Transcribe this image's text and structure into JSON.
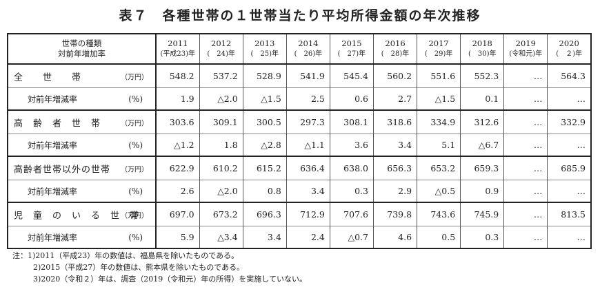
{
  "title": "表７　各種世帯の１世帯当たり平均所得金額の年次推移",
  "header": {
    "label_line1": "世帯の種類",
    "label_line2": "対前年増加率",
    "years": [
      {
        "year": "2011",
        "era": "(平成23)年"
      },
      {
        "year": "2012",
        "era": "(　24)年"
      },
      {
        "year": "2013",
        "era": "(　25)年"
      },
      {
        "year": "2014",
        "era": "(　26)年"
      },
      {
        "year": "2015",
        "era": "(　27)年"
      },
      {
        "year": "2016",
        "era": "(　28)年"
      },
      {
        "year": "2017",
        "era": "(　29)年"
      },
      {
        "year": "2018",
        "era": "(　30)年"
      },
      {
        "year": "2019",
        "era": "(令和元)年"
      },
      {
        "year": "2020",
        "era": "(　２)年"
      }
    ]
  },
  "rows": [
    {
      "label": "全　　世　　帯",
      "unit": "（万円）",
      "values": [
        "548.2",
        "537.2",
        "528.9",
        "541.9",
        "545.4",
        "560.2",
        "551.6",
        "552.3",
        "…",
        "564.3"
      ]
    },
    {
      "label": "対前年増減率",
      "unit": "(%)",
      "values": [
        "1.9",
        "△2.0",
        "△1.5",
        "2.5",
        "0.6",
        "2.7",
        "△1.5",
        "0.1",
        "…",
        "…"
      ]
    },
    {
      "label": "高　齢　者　世　帯",
      "unit": "（万円）",
      "values": [
        "303.6",
        "309.1",
        "300.5",
        "297.3",
        "308.1",
        "318.6",
        "334.9",
        "312.6",
        "…",
        "332.9"
      ]
    },
    {
      "label": "対前年増減率",
      "unit": "(%)",
      "values": [
        "△1.2",
        "1.8",
        "△2.8",
        "△1.1",
        "3.6",
        "3.4",
        "5.1",
        "△6.7",
        "…",
        "…"
      ]
    },
    {
      "label": "高齢者世帯以外の世帯",
      "unit": "（万円）",
      "values": [
        "622.9",
        "610.2",
        "615.2",
        "636.4",
        "638.0",
        "656.3",
        "653.2",
        "659.3",
        "…",
        "685.9"
      ]
    },
    {
      "label": "対前年増減率",
      "unit": "(%)",
      "values": [
        "2.6",
        "△2.0",
        "0.8",
        "3.4",
        "0.3",
        "2.9",
        "△0.5",
        "0.9",
        "…",
        "…"
      ]
    },
    {
      "label": "児　童　の　い　る　世　帯",
      "unit": "（万円）",
      "values": [
        "697.0",
        "673.2",
        "696.3",
        "712.9",
        "707.6",
        "739.8",
        "743.6",
        "745.9",
        "…",
        "813.5"
      ]
    },
    {
      "label": "対前年増減率",
      "unit": "(%)",
      "values": [
        "5.9",
        "△3.4",
        "3.4",
        "2.4",
        "△0.7",
        "4.6",
        "0.5",
        "0.3",
        "…",
        "…"
      ]
    }
  ],
  "notes": [
    "注：1)2011（平成23）年の数値は、福島県を除いたものである。",
    "2)2015（平成27）年の数値は、熊本県を除いたものである。",
    "3)2020（令和２）年は、調査（2019（令和元）年の所得）を実施していない。"
  ]
}
